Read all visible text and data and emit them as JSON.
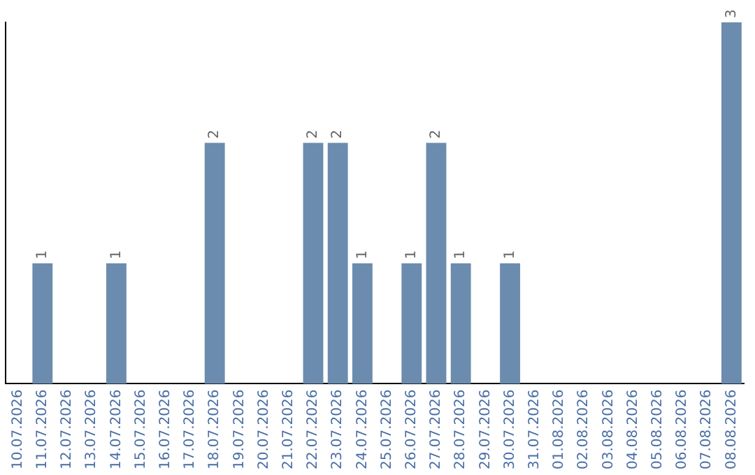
{
  "chart_data": {
    "type": "bar",
    "categories": [
      "10.07.2026",
      "11.07.2026",
      "12.07.2026",
      "13.07.2026",
      "14.07.2026",
      "15.07.2026",
      "16.07.2026",
      "17.07.2026",
      "18.07.2026",
      "19.07.2026",
      "20.07.2026",
      "21.07.2026",
      "22.07.2026",
      "23.07.2026",
      "24.07.2026",
      "25.07.2026",
      "26.07.2026",
      "27.07.2026",
      "28.07.2026",
      "29.07.2026",
      "30.07.2026",
      "31.07.2026",
      "01.08.2026",
      "02.08.2026",
      "03.08.2026",
      "04.08.2026",
      "05.08.2026",
      "06.08.2026",
      "07.08.2026",
      "08.08.2026"
    ],
    "values": [
      0,
      1,
      0,
      0,
      1,
      0,
      0,
      0,
      2,
      0,
      0,
      0,
      2,
      2,
      1,
      0,
      1,
      2,
      1,
      0,
      1,
      0,
      0,
      0,
      0,
      0,
      0,
      0,
      0,
      3
    ],
    "value_labels": [
      null,
      "1",
      null,
      null,
      "1",
      null,
      null,
      null,
      "2",
      null,
      null,
      null,
      "2",
      "2",
      "1",
      null,
      "1",
      "2",
      "1",
      null,
      "1",
      null,
      null,
      null,
      null,
      null,
      null,
      null,
      null,
      "3"
    ],
    "color": "#6b8cae",
    "ylim": [
      0,
      3
    ],
    "grid": false,
    "legend": false,
    "tick_labels": "x"
  }
}
